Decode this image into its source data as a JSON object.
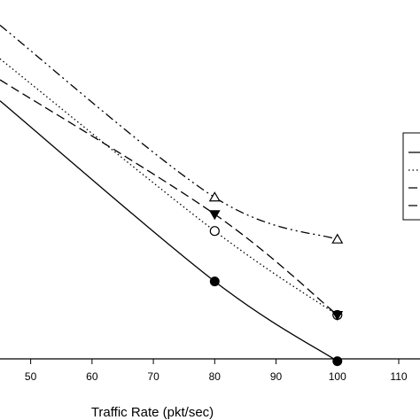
{
  "chart_data": {
    "type": "line",
    "title": "",
    "xlabel": "Traffic Rate (pkt/sec)",
    "ylabel": "",
    "xlim": [
      45,
      110
    ],
    "ylim": [
      0,
      1
    ],
    "xticks": [
      50,
      60,
      70,
      80,
      90,
      100,
      110
    ],
    "grid": false,
    "legend_position": "right",
    "series": [
      {
        "marker": "filled-circle",
        "line_style": "solid",
        "color": "#000000",
        "points": [
          [
            45,
            0.76
          ],
          [
            80,
            0.33
          ],
          [
            100,
            0.14
          ]
        ],
        "markers_at": [
          80,
          100
        ]
      },
      {
        "marker": "open-circle",
        "line_style": "dotted",
        "color": "#000000",
        "points": [
          [
            45,
            0.86
          ],
          [
            80,
            0.45
          ],
          [
            100,
            0.25
          ]
        ],
        "markers_at": [
          80,
          100
        ]
      },
      {
        "marker": "filled-triangle-down",
        "line_style": "dashed",
        "color": "#000000",
        "points": [
          [
            45,
            0.81
          ],
          [
            80,
            0.49
          ],
          [
            100,
            0.25
          ]
        ],
        "markers_at": [
          80,
          100
        ]
      },
      {
        "marker": "open-triangle-up",
        "line_style": "dash-dot-dot",
        "color": "#000000",
        "points": [
          [
            45,
            0.94
          ],
          [
            80,
            0.53
          ],
          [
            100,
            0.43
          ]
        ],
        "markers_at": [
          80,
          100
        ]
      }
    ]
  }
}
